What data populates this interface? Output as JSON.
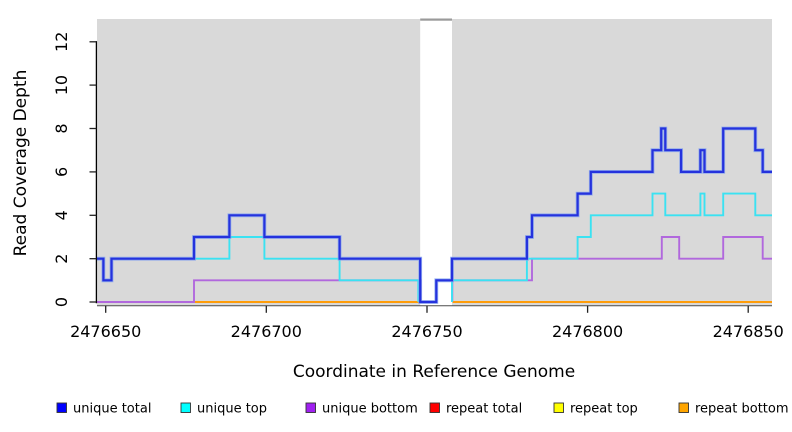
{
  "chart_data": {
    "type": "line",
    "subtype": "step-coverage",
    "title": "",
    "xlabel": "Coordinate in Reference Genome",
    "ylabel": "Read Coverage Depth",
    "xlim": [
      2476647.3,
      2476857.4
    ],
    "ylim": [
      -0.16,
      13.05
    ],
    "x_ticks": [
      2476650,
      2476700,
      2476750,
      2476800,
      2476850
    ],
    "y_ticks": [
      0,
      2,
      4,
      6,
      8,
      10,
      12
    ],
    "grid": false,
    "plot_bg": "#d9d9d9",
    "mask_region": {
      "x_start": 2476747.9,
      "x_end": 2476757.8,
      "fill": "#ffffff",
      "cap_color": "#9a9a9a"
    },
    "legend": {
      "position": "bottom",
      "items": [
        {
          "label": "unique total",
          "color": "#0000ff"
        },
        {
          "label": "unique top",
          "color": "#00ffff"
        },
        {
          "label": "unique bottom",
          "color": "#a020f0"
        },
        {
          "label": "repeat total",
          "color": "#ff0000"
        },
        {
          "label": "repeat top",
          "color": "#ffff00"
        },
        {
          "label": "repeat bottom",
          "color": "#ffa500"
        }
      ]
    },
    "series": [
      {
        "name": "repeat total",
        "color": "#ff0000",
        "line_color": "#e02020",
        "width": 1.6,
        "segments": [
          [
            [
              2476647.3,
              0
            ],
            [
              2476747.7,
              0
            ]
          ],
          [
            [
              2476758.0,
              0
            ],
            [
              2476857.4,
              0
            ]
          ]
        ]
      },
      {
        "name": "repeat top",
        "color": "#ffff00",
        "line_color": "#f0e020",
        "width": 1.6,
        "segments": [
          [
            [
              2476647.3,
              0
            ],
            [
              2476747.7,
              0
            ]
          ],
          [
            [
              2476758.0,
              0
            ],
            [
              2476857.4,
              0
            ]
          ]
        ]
      },
      {
        "name": "repeat bottom",
        "color": "#ffa500",
        "line_color": "#ff9d0a",
        "width": 2,
        "segments": [
          [
            [
              2476647.3,
              0
            ],
            [
              2476747.7,
              0
            ]
          ],
          [
            [
              2476758.0,
              0
            ],
            [
              2476857.4,
              0
            ]
          ]
        ]
      },
      {
        "name": "unique bottom",
        "color": "#a020f0",
        "line_color": "#b168dd",
        "width": 1.9,
        "segments": [
          [
            [
              2476647.3,
              0
            ],
            [
              2476677.5,
              1
            ],
            [
              2476748.1,
              0
            ]
          ],
          [
            [
              2476757.9,
              0
            ],
            [
              2476757.9,
              1
            ],
            [
              2476782.7,
              2
            ],
            [
              2476823.1,
              3
            ],
            [
              2476828.5,
              2
            ],
            [
              2476842.2,
              3
            ],
            [
              2476854.5,
              2
            ],
            [
              2476857.4,
              2
            ]
          ]
        ]
      },
      {
        "name": "unique top",
        "color": "#00ffff",
        "line_color": "#3ae2f2",
        "width": 1.9,
        "segments": [
          [
            [
              2476647.3,
              2
            ],
            [
              2476649.3,
              1
            ],
            [
              2476651.8,
              2
            ],
            [
              2476688.5,
              3
            ],
            [
              2476699.4,
              2
            ],
            [
              2476722.8,
              1
            ],
            [
              2476747.3,
              0
            ]
          ],
          [
            [
              2476757.8,
              0
            ],
            [
              2476757.8,
              1
            ],
            [
              2476781.1,
              2
            ],
            [
              2476796.9,
              3
            ],
            [
              2476801.0,
              4
            ],
            [
              2476820.2,
              5
            ],
            [
              2476824.2,
              4
            ],
            [
              2476835.1,
              5
            ],
            [
              2476836.4,
              4
            ],
            [
              2476842.2,
              5
            ],
            [
              2476852.2,
              4
            ],
            [
              2476857.4,
              4
            ]
          ]
        ]
      },
      {
        "name": "unique total",
        "color": "#0000ff",
        "line_color": "#2532dd",
        "halo_color": "#82a0ef",
        "width": 2.2,
        "segments": [
          [
            [
              2476647.3,
              2
            ],
            [
              2476649.3,
              1
            ],
            [
              2476651.8,
              2
            ],
            [
              2476677.5,
              3
            ],
            [
              2476688.5,
              4
            ],
            [
              2476699.4,
              3
            ],
            [
              2476722.8,
              2
            ],
            [
              2476747.9,
              0
            ],
            [
              2476752.9,
              1
            ],
            [
              2476757.8,
              2
            ],
            [
              2476781.1,
              3
            ],
            [
              2476782.7,
              4
            ],
            [
              2476796.9,
              5
            ],
            [
              2476801.0,
              6
            ],
            [
              2476820.2,
              7
            ],
            [
              2476822.9,
              8
            ],
            [
              2476824.2,
              7
            ],
            [
              2476829.1,
              6
            ],
            [
              2476835.1,
              7
            ],
            [
              2476836.4,
              6
            ],
            [
              2476842.2,
              8
            ],
            [
              2476852.2,
              7
            ],
            [
              2476854.5,
              6
            ],
            [
              2476857.4,
              6
            ]
          ]
        ]
      }
    ]
  }
}
